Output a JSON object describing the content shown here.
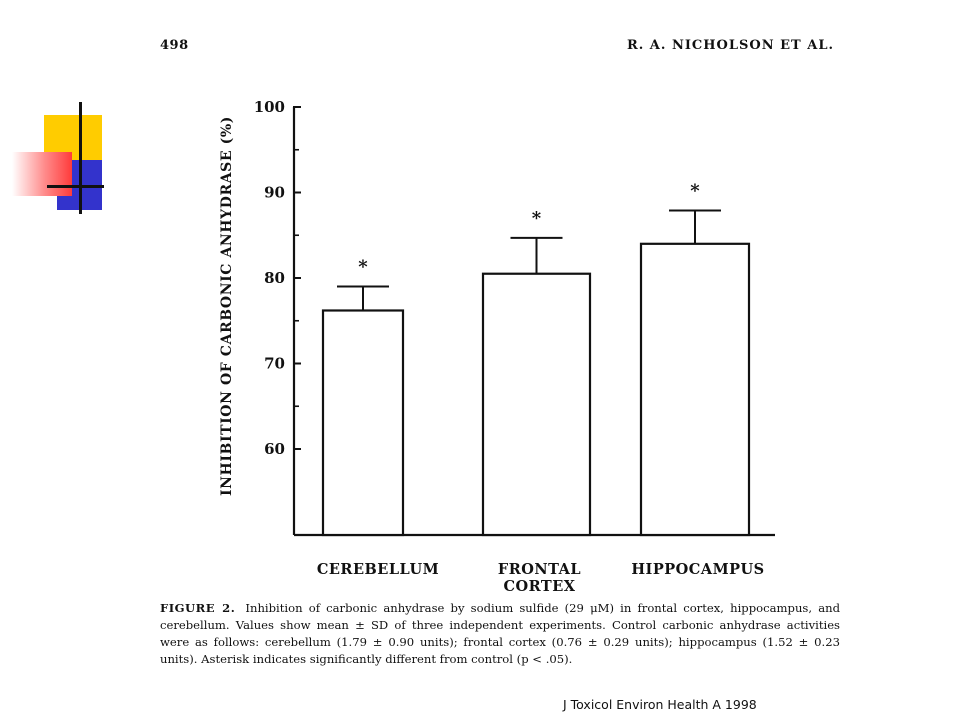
{
  "header": {
    "page_number": "498",
    "running_head": "R. A. NICHOLSON ET AL."
  },
  "chart_data": {
    "type": "bar",
    "ylabel": "INHIBITION OF CARBONIC ANHYDRASE (%)",
    "ylim": [
      50,
      100
    ],
    "yticks": [
      60,
      70,
      80,
      90,
      100
    ],
    "categories": [
      "CEREBELLUM",
      "FRONTAL CORTEX",
      "HIPPOCAMPUS"
    ],
    "category_lines": [
      [
        "CEREBELLUM"
      ],
      [
        "FRONTAL",
        "CORTEX"
      ],
      [
        "HIPPOCAMPUS"
      ]
    ],
    "values": [
      76.2,
      80.5,
      84.0
    ],
    "error_sd": [
      2.8,
      4.2,
      3.9
    ],
    "significance": [
      "*",
      "*",
      "*"
    ],
    "bar_fill": "#ffffff",
    "stroke_color": "#111111"
  },
  "caption": {
    "label": "FIGURE 2.",
    "text": "Inhibition of carbonic anhydrase by sodium sulfide (29 μM) in frontal cortex, hippocampus, and cerebellum. Values show mean ± SD of three independent experiments. Control carbonic anhydrase activities were as follows: cerebellum (1.79 ± 0.90 units); frontal cortex (0.76 ± 0.29 units); hippocampus (1.52 ± 0.23 units). Asterisk indicates significantly different from control (p < .05)."
  },
  "citation": "J Toxicol Environ Health A 1998",
  "decoration": {
    "icon": "color-blocks-ornament",
    "colors": {
      "yellow": "#ffcc00",
      "blue": "#3333cc",
      "red": "#ff3b3b"
    }
  }
}
